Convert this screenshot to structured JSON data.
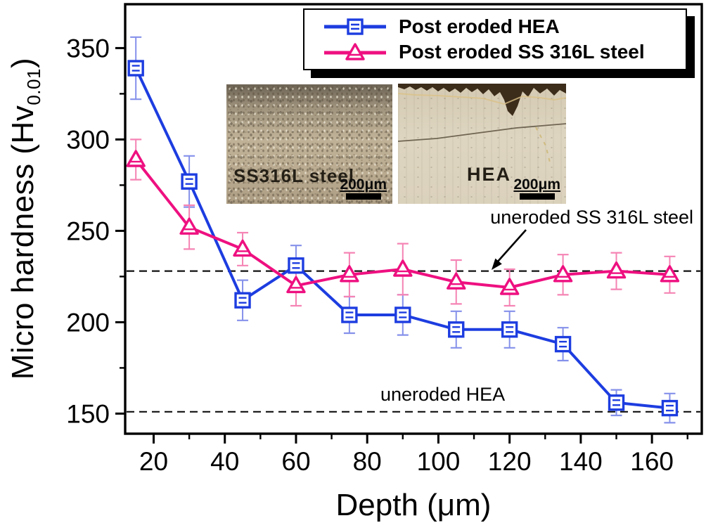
{
  "chart_data": {
    "type": "line",
    "title": "",
    "xlabel": "Depth (μm)",
    "ylabel_prefix": "Micro hardness (Hv",
    "ylabel_sub": "0.01",
    "ylabel_suffix": ")",
    "xlim": [
      12,
      174
    ],
    "ylim": [
      139,
      374
    ],
    "grid": false,
    "legend_position": "top-right",
    "x_major_ticks": [
      20,
      40,
      60,
      80,
      100,
      120,
      140,
      160
    ],
    "x_minor_ticks": [
      30,
      50,
      70,
      90,
      110,
      130,
      150,
      170
    ],
    "y_major_ticks": [
      150,
      200,
      250,
      300,
      350
    ],
    "y_minor_ticks": [
      175,
      225,
      275,
      325
    ],
    "x": [
      15,
      30,
      45,
      60,
      75,
      90,
      105,
      120,
      135,
      150,
      165
    ],
    "series": [
      {
        "name": "Post eroded HEA",
        "marker": "square",
        "color": "#1d3de0",
        "error_color": "#8591ea",
        "values": [
          339,
          277,
          212,
          231,
          204,
          204,
          196,
          196,
          188,
          156,
          153
        ],
        "errors": [
          17,
          14,
          11,
          11,
          10,
          11,
          10,
          10,
          9,
          7,
          8
        ]
      },
      {
        "name": "Post eroded SS 316L steel",
        "marker": "triangle",
        "color": "#ee1080",
        "error_color": "#f584b4",
        "values": [
          289,
          252,
          240,
          220,
          226,
          229,
          222,
          219,
          226,
          228,
          226
        ],
        "errors": [
          11,
          12,
          9,
          11,
          12,
          14,
          12,
          10,
          11,
          10,
          10
        ]
      }
    ],
    "reference_lines": [
      {
        "label": "uneroded SS 316L steel",
        "value": 228
      },
      {
        "label": "uneroded HEA",
        "value": 151
      }
    ]
  },
  "insets": [
    {
      "label": "SS316L steel",
      "scale_bar": "200μm"
    },
    {
      "label": "HEA",
      "scale_bar": "200μm"
    }
  ]
}
